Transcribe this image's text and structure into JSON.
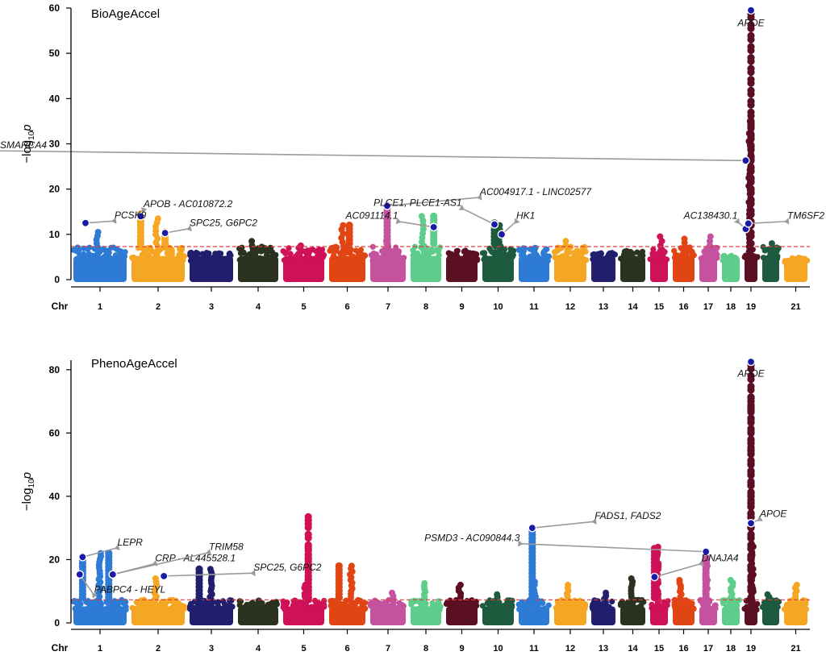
{
  "chart_data": [
    {
      "type": "scatter",
      "title": "BioAgeAccel",
      "ylabel": "−log",
      "ylabel_sub": "10",
      "ylabel_var": "p",
      "xlabel": "Chr",
      "ylim": [
        0,
        60
      ],
      "yticks": [
        "0",
        "10",
        "20",
        "30",
        "40",
        "50",
        "60"
      ],
      "threshold": 7.3,
      "threshold_color": "#e23c3c",
      "chromosome_labels": [
        "1",
        "2",
        "3",
        "4",
        "5",
        "6",
        "7",
        "8",
        "9",
        "10",
        "11",
        "12",
        "13",
        "14",
        "15",
        "16",
        "17",
        "18",
        "19",
        "21"
      ],
      "chromosome_base_heights": [
        10.5,
        13.5,
        6,
        8.5,
        7.5,
        12,
        9.5,
        14,
        6.5,
        12,
        7,
        8.5,
        6,
        6.5,
        9.5,
        9,
        9.5,
        5.5,
        35,
        8,
        5
      ],
      "peaks": [
        {
          "chr": 2,
          "offset": 0.2,
          "value": 14.5
        },
        {
          "chr": 2,
          "offset": 0.62,
          "value": 10.5
        },
        {
          "chr": 6,
          "offset": 0.55,
          "value": 12
        },
        {
          "chr": 7,
          "offset": 0.48,
          "value": 16.5
        },
        {
          "chr": 8,
          "offset": 0.72,
          "value": 14
        },
        {
          "chr": 10,
          "offset": 0.4,
          "value": 12.5
        },
        {
          "chr": 19,
          "offset": 0.5,
          "value": 59.5
        },
        {
          "chr": 19,
          "offset": 0.5,
          "value": 35
        }
      ],
      "annotations": [
        {
          "text": "APOE",
          "chr": 19,
          "offset": 0.5,
          "value": 59.5,
          "lx": 0.5,
          "ly": 56.5,
          "arrow": false
        },
        {
          "text": "SMARCA4",
          "chr": 19,
          "offset": 0.2,
          "value": 26.3,
          "lx": 21.25,
          "ly": 29,
          "arrow": true
        },
        {
          "text": "APOB - AC010872.2",
          "chr": 2,
          "offset": 0.2,
          "value": 14,
          "lx": 1.25,
          "ly": 16,
          "arrow": true
        },
        {
          "text": "PCSK9",
          "chr": 1,
          "offset": 0.25,
          "value": 12.5,
          "lx": 0.75,
          "ly": 13.5,
          "arrow": true
        },
        {
          "text": "SPC25, G6PC2",
          "chr": 2,
          "offset": 0.62,
          "value": 10.3,
          "lx": 2.05,
          "ly": 11.8,
          "arrow": true
        },
        {
          "text": "AC004917.1 - LINC02577",
          "chr": 7,
          "offset": 0.48,
          "value": 16.3,
          "lx": 9.0,
          "ly": 18.7,
          "arrow": true
        },
        {
          "text": "PLCE1, PLCE1-AS1",
          "chr": 10,
          "offset": 0.4,
          "value": 12.2,
          "lx": 8.5,
          "ly": 16.3,
          "arrow": true
        },
        {
          "text": "AC091114.1",
          "chr": 8,
          "offset": 0.72,
          "value": 11.6,
          "lx": 6.75,
          "ly": 13.4,
          "arrow": true
        },
        {
          "text": "HK1",
          "chr": 10,
          "offset": 0.6,
          "value": 10.0,
          "lx": 10.0,
          "ly": 13.4,
          "arrow": true
        },
        {
          "text": "AC138430.1",
          "chr": 19,
          "offset": 0.2,
          "value": 11.2,
          "lx": 17.8,
          "ly": 13.4,
          "arrow": true
        },
        {
          "text": "TM6SF2",
          "chr": 19,
          "offset": 0.35,
          "value": 12.4,
          "lx": 20.2,
          "ly": 13.4,
          "arrow": true
        }
      ]
    },
    {
      "type": "scatter",
      "title": "PhenoAgeAccel",
      "ylabel": "−log",
      "ylabel_sub": "10",
      "ylabel_var": "p",
      "xlabel": "Chr",
      "ylim": [
        0,
        83
      ],
      "yticks": [
        "0",
        "20",
        "40",
        "60",
        "80"
      ],
      "threshold": 7.3,
      "threshold_color": "#e23c3c",
      "chromosome_labels": [
        "1",
        "2",
        "3",
        "4",
        "5",
        "6",
        "7",
        "8",
        "9",
        "10",
        "11",
        "12",
        "13",
        "14",
        "15",
        "16",
        "17",
        "18",
        "19",
        "21"
      ],
      "chromosome_base_heights": [
        22,
        14,
        17,
        7,
        12,
        18,
        9.5,
        12.5,
        12,
        9,
        13,
        12,
        9.5,
        14,
        24,
        13.5,
        22.5,
        13.5,
        25,
        9,
        12
      ],
      "peaks": [
        {
          "chr": 1,
          "offset": 0.2,
          "value": 21
        },
        {
          "chr": 1,
          "offset": 0.65,
          "value": 22
        },
        {
          "chr": 3,
          "offset": 0.25,
          "value": 17
        },
        {
          "chr": 5,
          "offset": 0.6,
          "value": 33.5
        },
        {
          "chr": 5,
          "offset": 0.6,
          "value": 24
        },
        {
          "chr": 6,
          "offset": 0.3,
          "value": 18
        },
        {
          "chr": 11,
          "offset": 0.45,
          "value": 30
        },
        {
          "chr": 15,
          "offset": 0.3,
          "value": 23.5
        },
        {
          "chr": 17,
          "offset": 0.4,
          "value": 22.5
        },
        {
          "chr": 19,
          "offset": 0.5,
          "value": 82.5
        },
        {
          "chr": 19,
          "offset": 0.5,
          "value": 71
        },
        {
          "chr": 19,
          "offset": 0.5,
          "value": 55.5
        },
        {
          "chr": 19,
          "offset": 0.5,
          "value": 41
        }
      ],
      "annotations": [
        {
          "text": "APOE",
          "chr": 19,
          "offset": 0.5,
          "value": 82.5,
          "lx": 0.5,
          "ly": 78.5,
          "arrow": false
        },
        {
          "text": "APOE",
          "chr": 19,
          "offset": 0.5,
          "value": 31.5,
          "lx": 19.0,
          "ly": 33.5,
          "arrow": true
        },
        {
          "text": "LEPR",
          "chr": 1,
          "offset": 0.2,
          "value": 20.8,
          "lx": 0.8,
          "ly": 24.5,
          "arrow": true
        },
        {
          "text": "CRP - AL445528.1",
          "chr": 1,
          "offset": 0.72,
          "value": 15.3,
          "lx": 1.45,
          "ly": 19.5,
          "arrow": true
        },
        {
          "text": "TRIM58",
          "chr": 1,
          "offset": 0.72,
          "value": 15.3,
          "lx": 2.45,
          "ly": 23,
          "arrow": true
        },
        {
          "text": "PABPC4 - HEYL",
          "chr": 1,
          "offset": 0.15,
          "value": 15.3,
          "lx": 0.4,
          "ly": 9.5,
          "arrow": true
        },
        {
          "text": "SPC25, G6PC2",
          "chr": 2,
          "offset": 0.6,
          "value": 14.8,
          "lx": 3.4,
          "ly": 16.5,
          "arrow": true
        },
        {
          "text": "FADS1, FADS2",
          "chr": 11,
          "offset": 0.45,
          "value": 30.0,
          "lx": 12.2,
          "ly": 32.8,
          "arrow": true
        },
        {
          "text": "PSMD3 - AC090844.3",
          "chr": 17,
          "offset": 0.4,
          "value": 22.5,
          "lx": 10.1,
          "ly": 25.8,
          "arrow": true
        },
        {
          "text": "DNAJA4",
          "chr": 15,
          "offset": 0.3,
          "value": 14.5,
          "lx": 16.2,
          "ly": 19.5,
          "arrow": true
        }
      ]
    }
  ]
}
